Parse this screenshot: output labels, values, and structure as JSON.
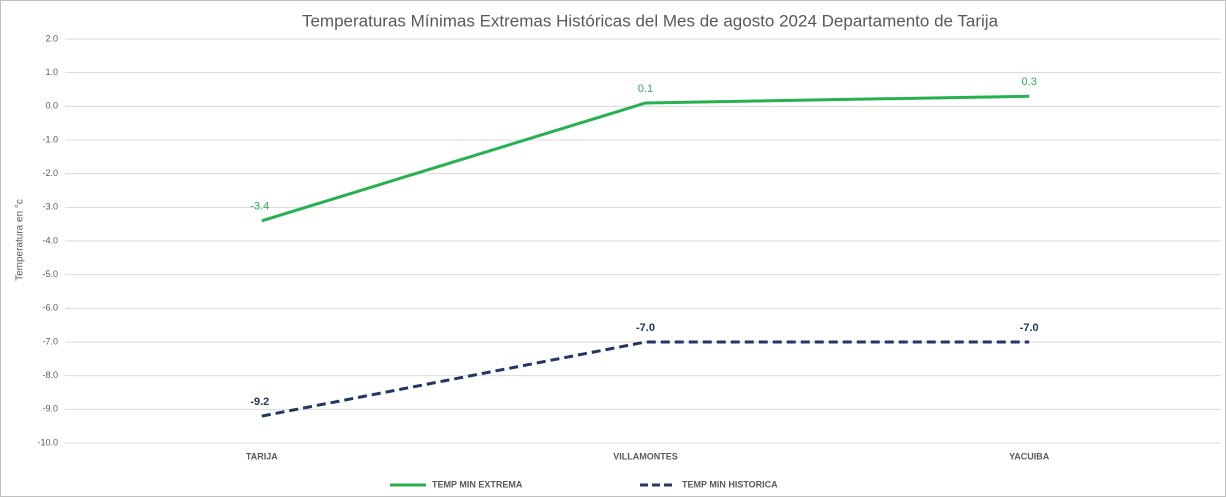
{
  "chart_data": {
    "type": "line",
    "title": "Temperaturas Mínimas Extremas Históricas del Mes de agosto 2024 Departamento de Tarija",
    "y_label": "Temperatura en °c",
    "categories": [
      "TARIJA",
      "VILLAMONTES",
      "YACUIBA"
    ],
    "series": [
      {
        "name": "TEMP MIN EXTREMA",
        "color": "#27b04f",
        "dash": false,
        "values": [
          -3.4,
          0.1,
          0.3
        ]
      },
      {
        "name": "TEMP MIN HISTORICA",
        "color": "#1f3864",
        "dash": true,
        "values": [
          -9.2,
          -7,
          -7
        ],
        "value_labels": [
          "-9.2",
          "-7.0",
          "-7.0"
        ]
      }
    ],
    "ylim": [
      -10,
      2
    ],
    "yticks": [
      {
        "value": 2,
        "label": "2.0"
      },
      {
        "value": 1,
        "label": "1.0"
      },
      {
        "value": 0,
        "label": "0.0"
      },
      {
        "value": -1,
        "label": "-1.0"
      },
      {
        "value": -2,
        "label": "-2.0"
      },
      {
        "value": -3,
        "label": "-3.0"
      },
      {
        "value": -4,
        "label": "-4.0"
      },
      {
        "value": -5,
        "label": "-5.0"
      },
      {
        "value": -6,
        "label": "-6.0"
      },
      {
        "value": -7,
        "label": "-7.0"
      },
      {
        "value": -8,
        "label": "-8.0"
      },
      {
        "value": -9,
        "label": "-9.0"
      },
      {
        "value": -10,
        "label": "-10.0"
      }
    ],
    "grid": true,
    "legend": "bottom"
  }
}
